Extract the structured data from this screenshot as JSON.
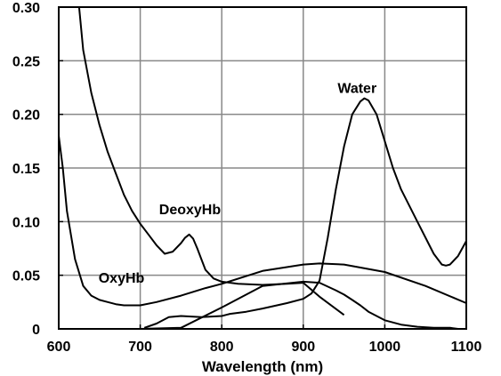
{
  "chart_data": {
    "type": "line",
    "title": "",
    "xlabel": "Wavelength (nm)",
    "ylabel": "",
    "xlim": [
      600,
      1100
    ],
    "ylim": [
      0,
      0.3
    ],
    "x_ticks": [
      "600",
      "700",
      "800",
      "900",
      "1000",
      "1100"
    ],
    "y_ticks": [
      "0",
      "0.05",
      "0.10",
      "0.15",
      "0.20",
      "0.25",
      "0.30"
    ],
    "grid": true,
    "legend": "none",
    "series": [
      {
        "name": "DeoxyHb",
        "x": [
          625,
          630,
          640,
          650,
          660,
          670,
          680,
          690,
          700,
          710,
          720,
          730,
          740,
          750,
          755,
          760,
          765,
          770,
          775,
          780,
          790,
          800,
          820,
          850,
          880,
          900,
          920,
          950
        ],
        "y": [
          0.3,
          0.26,
          0.22,
          0.19,
          0.165,
          0.145,
          0.125,
          0.11,
          0.098,
          0.088,
          0.078,
          0.07,
          0.072,
          0.08,
          0.085,
          0.088,
          0.084,
          0.075,
          0.065,
          0.055,
          0.047,
          0.044,
          0.042,
          0.041,
          0.042,
          0.043,
          0.03,
          0.013
        ]
      },
      {
        "name": "OxyHb",
        "x": [
          600,
          605,
          610,
          620,
          630,
          640,
          650,
          660,
          670,
          680,
          690,
          700,
          720,
          750,
          780,
          800,
          850,
          900,
          920,
          950,
          1000,
          1050,
          1100
        ],
        "y": [
          0.18,
          0.15,
          0.11,
          0.065,
          0.04,
          0.031,
          0.027,
          0.025,
          0.023,
          0.022,
          0.022,
          0.022,
          0.025,
          0.031,
          0.038,
          0.042,
          0.054,
          0.06,
          0.061,
          0.06,
          0.053,
          0.04,
          0.024
        ]
      },
      {
        "name": "Water",
        "x": [
          705,
          720,
          735,
          750,
          775,
          800,
          810,
          830,
          850,
          880,
          900,
          910,
          920,
          930,
          940,
          950,
          960,
          970,
          975,
          980,
          990,
          1000,
          1010,
          1020,
          1040,
          1060,
          1070,
          1075,
          1080,
          1090,
          1100
        ],
        "y": [
          0.001,
          0.005,
          0.011,
          0.012,
          0.011,
          0.012,
          0.014,
          0.016,
          0.019,
          0.024,
          0.028,
          0.033,
          0.045,
          0.085,
          0.13,
          0.17,
          0.2,
          0.212,
          0.215,
          0.213,
          0.2,
          0.175,
          0.15,
          0.13,
          0.1,
          0.07,
          0.06,
          0.059,
          0.06,
          0.068,
          0.082
        ]
      },
      {
        "name": "",
        "x": [
          700,
          750,
          800,
          850,
          900,
          920,
          940,
          950,
          960,
          970,
          980,
          1000,
          1020,
          1040,
          1060,
          1080,
          1090
        ],
        "y": [
          0.0,
          0.001,
          0.02,
          0.04,
          0.044,
          0.043,
          0.036,
          0.032,
          0.027,
          0.022,
          0.016,
          0.008,
          0.004,
          0.002,
          0.001,
          0.001,
          0.0
        ]
      }
    ],
    "annotations": [
      {
        "text": "DeoxyHb",
        "x": 761,
        "y": 0.112
      },
      {
        "text": "OxyHb",
        "x": 677,
        "y": 0.048
      },
      {
        "text": "Water",
        "x": 966,
        "y": 0.225
      }
    ]
  }
}
